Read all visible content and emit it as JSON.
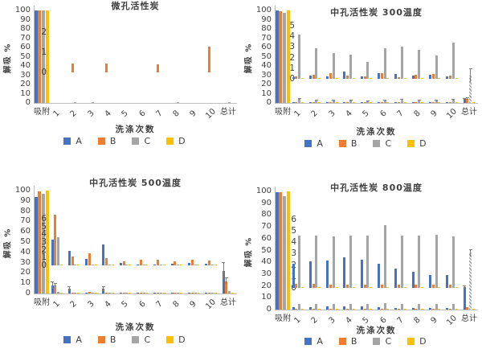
{
  "page": {
    "background": "#ffffff"
  },
  "palette": {
    "A": "#4472C4",
    "B": "#ED7D31",
    "C": "#A5A5A5",
    "D": "#FFC000",
    "axis": "#bfbfbf",
    "text": "#404040",
    "error": "#7f7f7f"
  },
  "chart_data": [
    {
      "type": "bar",
      "title": "微孔活性炭",
      "xlabel": "洗涤次数",
      "ylabel": "解吸 %",
      "ylim": [
        0,
        100
      ],
      "yticks": [
        0,
        10,
        20,
        30,
        40,
        50,
        60,
        70,
        80,
        90,
        100
      ],
      "categories": [
        "吸附",
        "1",
        "2",
        "3",
        "4",
        "5",
        "6",
        "7",
        "8",
        "9",
        "10",
        "总计"
      ],
      "legend": [
        "A",
        "B",
        "C",
        "D"
      ],
      "series": [
        {
          "name": "A",
          "values": [
            100,
            0,
            0,
            0,
            0,
            0,
            0,
            0,
            0,
            0,
            0,
            0
          ]
        },
        {
          "name": "B",
          "values": [
            100,
            0,
            0,
            0,
            0,
            0,
            0,
            0,
            0,
            0,
            0,
            0
          ]
        },
        {
          "name": "C",
          "values": [
            100,
            0,
            0.5,
            0.5,
            0,
            0,
            0,
            0,
            0.5,
            0,
            0,
            0.7
          ]
        },
        {
          "name": "D",
          "values": [
            100,
            0,
            0,
            0,
            0,
            0,
            0,
            0,
            0,
            0,
            0,
            0
          ]
        }
      ],
      "inset": {
        "yticks": [
          0,
          1,
          2
        ],
        "series": [
          {
            "name": "B",
            "values": [
              0,
              0.45,
              0,
              0.45,
              0,
              0,
              0.4,
              0,
              0,
              1.3
            ]
          }
        ]
      }
    },
    {
      "type": "bar",
      "title": "中孔活性炭  300温度",
      "xlabel": "洗涤次数",
      "ylabel": "解吸 %",
      "ylim": [
        0,
        100
      ],
      "yticks": [
        0,
        10,
        20,
        30,
        40,
        50,
        60,
        70,
        80,
        90,
        100
      ],
      "categories": [
        "吸附",
        "1",
        "2",
        "3",
        "4",
        "5",
        "6",
        "7",
        "8",
        "9",
        "10",
        "总计"
      ],
      "legend": [
        "A",
        "B",
        "C",
        "D"
      ],
      "series": [
        {
          "name": "A",
          "values": [
            100,
            0.15,
            0.3,
            0.25,
            0.7,
            0.25,
            0.5,
            0.45,
            0.3,
            0.35,
            0.25,
            4
          ],
          "errors": [
            0,
            0,
            0,
            0,
            0,
            0,
            0,
            0,
            0,
            0,
            0,
            0.5
          ]
        },
        {
          "name": "B",
          "values": [
            99,
            0.25,
            0.4,
            0.5,
            0.3,
            0.25,
            0.5,
            0.15,
            0.4,
            0.45,
            0.3,
            4.5
          ],
          "errors": [
            0,
            0,
            0,
            0,
            0,
            0,
            0,
            0,
            0,
            0,
            0,
            1
          ]
        },
        {
          "name": "C",
          "values": [
            97,
            4.2,
            2.9,
            2.4,
            2.3,
            1.6,
            2.9,
            3.0,
            2.7,
            2.2,
            3.4,
            30
          ],
          "errors": [
            0,
            0.5,
            0.5,
            0.5,
            0.5,
            0.5,
            0.5,
            0.5,
            0.5,
            0.5,
            0.5,
            7
          ],
          "hatch_indices": [
            11
          ]
        },
        {
          "name": "D",
          "values": [
            100,
            0.1,
            0.1,
            0.1,
            0.1,
            0.1,
            0.1,
            0.1,
            0.1,
            0.1,
            0.1,
            0.3
          ]
        }
      ],
      "inset": {
        "yticks": [
          0,
          1,
          2,
          3,
          4,
          5
        ],
        "series": [
          {
            "name": "A",
            "values": [
              0.15,
              0.3,
              0.25,
              0.7,
              0.25,
              0.5,
              0.45,
              0.3,
              0.35,
              0.25
            ]
          },
          {
            "name": "B",
            "values": [
              0.25,
              0.4,
              0.5,
              0.3,
              0.25,
              0.5,
              0.15,
              0.4,
              0.45,
              0.3
            ]
          },
          {
            "name": "C",
            "values": [
              4.2,
              2.9,
              2.4,
              2.3,
              1.6,
              2.9,
              3.0,
              2.7,
              2.2,
              3.4
            ]
          },
          {
            "name": "D",
            "values": [
              0.1,
              0.1,
              0.1,
              0.1,
              0.1,
              0.1,
              0.1,
              0.1,
              0.1,
              0.1
            ]
          }
        ]
      }
    },
    {
      "type": "bar",
      "title": "中孔活性炭  500温度",
      "xlabel": "洗涤次数",
      "ylabel": "解吸 %",
      "ylim": [
        0,
        100
      ],
      "yticks": [
        0,
        10,
        20,
        30,
        40,
        50,
        60,
        70,
        80,
        90,
        100
      ],
      "categories": [
        "吸附",
        "1",
        "2",
        "3",
        "4",
        "5",
        "6",
        "7",
        "8",
        "9",
        "10",
        "总计"
      ],
      "legend": [
        "A",
        "B",
        "C",
        "D"
      ],
      "series": [
        {
          "name": "A",
          "values": [
            94,
            8,
            5,
            1,
            4.5,
            0.3,
            0.2,
            0.2,
            0.4,
            0.3,
            0.3,
            22
          ],
          "errors": [
            0,
            3,
            1.5,
            0,
            2,
            0,
            0,
            0,
            0,
            0,
            0,
            8
          ]
        },
        {
          "name": "B",
          "values": [
            99,
            8,
            1,
            1.5,
            1,
            0.5,
            0.5,
            0.5,
            0.4,
            0.5,
            0.5,
            12
          ],
          "errors": [
            0,
            2,
            0,
            0,
            0,
            0,
            0,
            0,
            0,
            0,
            0,
            3
          ]
        },
        {
          "name": "C",
          "values": [
            97,
            1.5,
            0.3,
            0.3,
            0.3,
            0.2,
            0.2,
            0.2,
            0.2,
            0.2,
            0.2,
            2.5
          ]
        },
        {
          "name": "D",
          "values": [
            100,
            0.1,
            0.1,
            0.1,
            0.1,
            0.1,
            0.1,
            0.1,
            0.1,
            0.1,
            0.1,
            0.5
          ]
        }
      ],
      "inset": {
        "yticks": [
          0,
          1,
          2,
          3,
          4,
          5,
          6
        ],
        "series": [
          {
            "name": "A",
            "values": [
              3.3,
              1.9,
              0.8,
              2.7,
              0.3,
              0.15,
              0.15,
              0.25,
              0.3,
              0.2
            ]
          },
          {
            "name": "B",
            "values": [
              6.5,
              1.1,
              1.5,
              0.9,
              0.5,
              0.7,
              0.7,
              0.5,
              0.7,
              0.6
            ]
          },
          {
            "name": "C",
            "values": [
              3.6,
              0.1,
              0.05,
              0.05,
              0.05,
              0.05,
              0.05,
              0.05,
              0.05,
              0.05
            ]
          },
          {
            "name": "D",
            "values": [
              0.08,
              0.05,
              0.05,
              0.05,
              0.05,
              0.05,
              0.05,
              0.05,
              0.05,
              0.05
            ]
          }
        ]
      }
    },
    {
      "type": "bar",
      "title": "中孔活性炭  800温度",
      "xlabel": "洗涤次数",
      "ylabel": "解吸 %",
      "ylim": [
        0,
        100
      ],
      "yticks": [
        0,
        10,
        20,
        30,
        40,
        50,
        60,
        70,
        80,
        90,
        100
      ],
      "categories": [
        "吸附",
        "1",
        "2",
        "3",
        "4",
        "5",
        "6",
        "7",
        "8",
        "9",
        "10",
        "总计"
      ],
      "legend": [
        "A",
        "B",
        "C",
        "D"
      ],
      "series": [
        {
          "name": "A",
          "values": [
            99,
            2.1,
            2.3,
            2.4,
            2.65,
            2.5,
            2.1,
            1.7,
            1.4,
            1.1,
            1.1,
            19
          ],
          "errors": [
            0,
            0,
            0,
            0,
            0,
            0,
            0,
            0,
            0,
            0,
            0,
            1
          ]
        },
        {
          "name": "B",
          "values": [
            99,
            0.35,
            0.35,
            0.3,
            0.25,
            0.25,
            0.25,
            0.25,
            0.25,
            0.3,
            0.25,
            2
          ]
        },
        {
          "name": "C",
          "values": [
            96,
            4.55,
            4.6,
            4.5,
            4.55,
            4.6,
            5.5,
            4.6,
            4.6,
            4.65,
            4.5,
            48
          ],
          "errors": [
            0,
            0,
            0,
            0,
            0,
            0,
            0,
            0,
            0,
            0,
            0,
            3
          ],
          "hatch_indices": [
            11
          ]
        },
        {
          "name": "D",
          "values": [
            100,
            0.1,
            0.1,
            0.1,
            0.1,
            0.1,
            0.1,
            0.1,
            0.1,
            0.1,
            0.1,
            0.5
          ]
        }
      ],
      "inset": {
        "yticks": [
          0,
          1,
          2,
          3,
          4,
          5,
          6
        ],
        "series": [
          {
            "name": "A",
            "values": [
              2.1,
              2.3,
              2.4,
              2.65,
              2.5,
              2.1,
              1.7,
              1.4,
              1.1,
              1.1
            ]
          },
          {
            "name": "B",
            "values": [
              0.35,
              0.35,
              0.3,
              0.25,
              0.25,
              0.25,
              0.25,
              0.25,
              0.3,
              0.25
            ]
          },
          {
            "name": "C",
            "values": [
              4.55,
              4.6,
              4.5,
              4.55,
              4.6,
              5.5,
              4.6,
              4.6,
              4.65,
              4.5
            ]
          },
          {
            "name": "D",
            "values": [
              0.1,
              0.1,
              0.1,
              0.1,
              0.1,
              0.1,
              0.1,
              0.1,
              0.1,
              0.1
            ]
          }
        ]
      }
    }
  ]
}
